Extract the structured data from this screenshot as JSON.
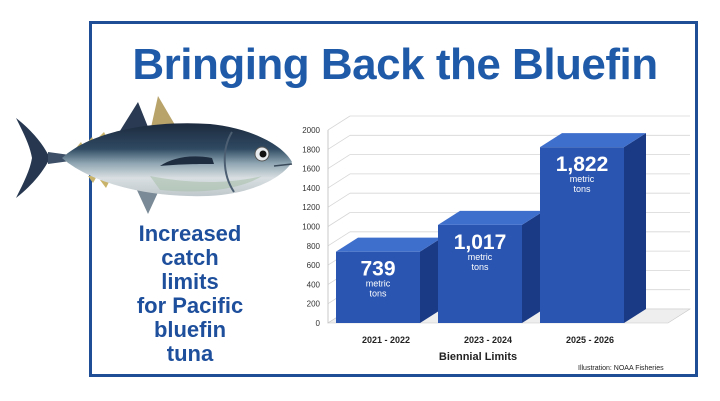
{
  "title": "Bringing Back the Bluefin",
  "caption_lines": [
    "Increased",
    "catch",
    "limits",
    "for Pacific",
    "bluefin",
    "tuna"
  ],
  "credit": "Illustration: NOAA Fisheries",
  "fish_icon": "bluefin-tuna-icon",
  "colors": {
    "accent": "#1e5aa8",
    "bar_front": "#2a55b0",
    "bar_side": "#1a3a86",
    "bar_top": "#3f6fcc",
    "frame": "#1f4e96"
  },
  "chart_data": {
    "type": "bar",
    "title": "",
    "xlabel": "Biennial Limits",
    "ylabel": "",
    "categories": [
      "2021 - 2022",
      "2023 - 2024",
      "2025 - 2026"
    ],
    "values": [
      739,
      1017,
      1822
    ],
    "data_labels": [
      "739",
      "1,017",
      "1,822"
    ],
    "data_sublabels": [
      [
        "metric",
        "tons"
      ],
      [
        "metric",
        "tons"
      ],
      [
        "metric",
        "tons"
      ]
    ],
    "ylim": [
      0,
      2000
    ],
    "yticks": [
      0,
      200,
      400,
      600,
      800,
      1000,
      1200,
      1400,
      1600,
      1800,
      2000
    ],
    "grid": true,
    "style": "3d-column"
  }
}
